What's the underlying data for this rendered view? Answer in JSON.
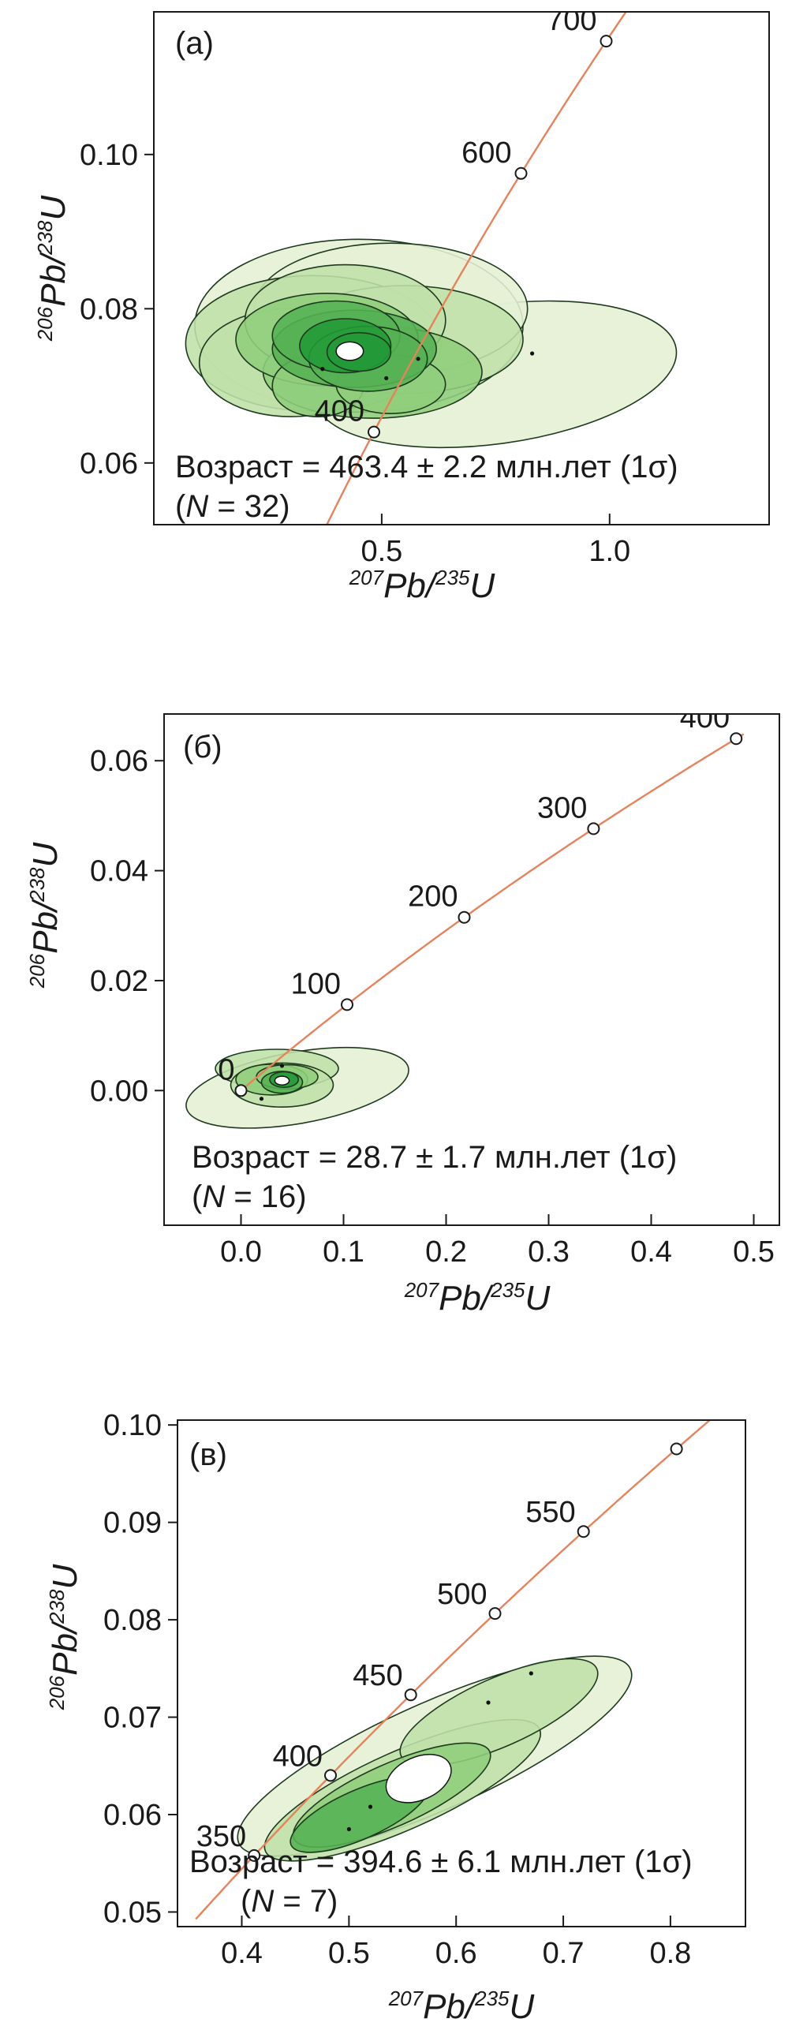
{
  "chart_data": [
    {
      "type": "scatter",
      "panel_label": "(а)",
      "xlabel_parts": [
        "207",
        "Pb/",
        "235",
        "U"
      ],
      "ylabel_parts": [
        "206",
        "Pb/",
        "238",
        "U"
      ],
      "xlim": [
        0.0,
        1.35
      ],
      "ylim": [
        0.052,
        0.1185
      ],
      "x_ticks": [
        {
          "v": 0.5,
          "label": "0.5"
        },
        {
          "v": 1.0,
          "label": "1.0"
        }
      ],
      "y_ticks": [
        {
          "v": 0.06,
          "label": "0.06"
        },
        {
          "v": 0.08,
          "label": "0.08"
        },
        {
          "v": 0.1,
          "label": "0.10"
        }
      ],
      "concordia_ages": [
        {
          "age": 400,
          "label": "400"
        },
        {
          "age": 600,
          "label": "600"
        },
        {
          "age": 700,
          "label": "700"
        }
      ],
      "concordia_range": [
        250,
        760
      ],
      "age_text": "Возраст = 463.4 ± 2.2 млн.лет (1σ)",
      "n_text": [
        "(",
        "N",
        " = 32)"
      ],
      "mean": {
        "x": 0.43,
        "y": 0.0745,
        "rx": 0.03,
        "ry": 0.0012
      },
      "ellipses": [
        {
          "x": 0.75,
          "y": 0.0715,
          "rx": 0.4,
          "ry": 0.009,
          "rot": -8,
          "shade": 0
        },
        {
          "x": 0.45,
          "y": 0.0778,
          "rx": 0.36,
          "ry": 0.0112,
          "rot": 0,
          "shade": 0
        },
        {
          "x": 0.52,
          "y": 0.08,
          "rx": 0.3,
          "ry": 0.0085,
          "rot": 0,
          "shade": 0
        },
        {
          "x": 0.35,
          "y": 0.0755,
          "rx": 0.28,
          "ry": 0.0088,
          "rot": 0,
          "shade": 1
        },
        {
          "x": 0.55,
          "y": 0.076,
          "rx": 0.26,
          "ry": 0.007,
          "rot": 0,
          "shade": 1
        },
        {
          "x": 0.3,
          "y": 0.073,
          "rx": 0.2,
          "ry": 0.007,
          "rot": 0,
          "shade": 1
        },
        {
          "x": 0.42,
          "y": 0.0785,
          "rx": 0.22,
          "ry": 0.0072,
          "rot": 0,
          "shade": 1
        },
        {
          "x": 0.48,
          "y": 0.0718,
          "rx": 0.24,
          "ry": 0.006,
          "rot": 0,
          "shade": 2
        },
        {
          "x": 0.38,
          "y": 0.076,
          "rx": 0.2,
          "ry": 0.006,
          "rot": 0,
          "shade": 2
        },
        {
          "x": 0.36,
          "y": 0.07,
          "rx": 0.1,
          "ry": 0.004,
          "rot": 0,
          "shade": 2
        },
        {
          "x": 0.52,
          "y": 0.0702,
          "rx": 0.12,
          "ry": 0.0038,
          "rot": 0,
          "shade": 2
        },
        {
          "x": 0.44,
          "y": 0.0748,
          "rx": 0.18,
          "ry": 0.005,
          "rot": 0,
          "shade": 3
        },
        {
          "x": 0.4,
          "y": 0.0765,
          "rx": 0.14,
          "ry": 0.0045,
          "rot": 0,
          "shade": 3
        },
        {
          "x": 0.47,
          "y": 0.0735,
          "rx": 0.13,
          "ry": 0.0042,
          "rot": 0,
          "shade": 3
        },
        {
          "x": 0.42,
          "y": 0.0752,
          "rx": 0.1,
          "ry": 0.0035,
          "rot": 0,
          "shade": 4
        },
        {
          "x": 0.45,
          "y": 0.0744,
          "rx": 0.07,
          "ry": 0.0025,
          "rot": 0,
          "shade": 4
        }
      ],
      "dots": [
        [
          0.42,
          0.0745
        ],
        [
          0.58,
          0.0735
        ],
        [
          0.83,
          0.0742
        ],
        [
          0.51,
          0.071
        ],
        [
          0.37,
          0.0722
        ]
      ]
    },
    {
      "type": "scatter",
      "panel_label": "(б)",
      "xlabel_parts": [
        "207",
        "Pb/",
        "235",
        "U"
      ],
      "ylabel_parts": [
        "206",
        "Pb/",
        "238",
        "U"
      ],
      "xlim": [
        -0.075,
        0.525
      ],
      "ylim": [
        -0.0245,
        0.0685
      ],
      "x_ticks": [
        {
          "v": 0.0,
          "label": "0.0"
        },
        {
          "v": 0.1,
          "label": "0.1"
        },
        {
          "v": 0.2,
          "label": "0.2"
        },
        {
          "v": 0.3,
          "label": "0.3"
        },
        {
          "v": 0.4,
          "label": "0.4"
        },
        {
          "v": 0.5,
          "label": "0.5"
        }
      ],
      "y_ticks": [
        {
          "v": 0.0,
          "label": "0.00"
        },
        {
          "v": 0.02,
          "label": "0.02"
        },
        {
          "v": 0.04,
          "label": "0.04"
        },
        {
          "v": 0.06,
          "label": "0.06"
        }
      ],
      "concordia_ages": [
        {
          "age": 0,
          "label": "0"
        },
        {
          "age": 100,
          "label": "100"
        },
        {
          "age": 200,
          "label": "200"
        },
        {
          "age": 300,
          "label": "300"
        },
        {
          "age": 400,
          "label": "400"
        }
      ],
      "concordia_range": [
        0,
        405
      ],
      "age_text": "Возраст = 28.7 ± 1.7 млн.лет (1σ)",
      "n_text": [
        "(",
        "N",
        " = 16)"
      ],
      "mean": {
        "x": 0.04,
        "y": 0.0018,
        "rx": 0.007,
        "ry": 0.0008
      },
      "ellipses": [
        {
          "x": 0.055,
          "y": 0.0005,
          "rx": 0.11,
          "ry": 0.0065,
          "rot": -10,
          "shade": 0
        },
        {
          "x": 0.035,
          "y": 0.004,
          "rx": 0.06,
          "ry": 0.0035,
          "rot": 0,
          "shade": 1
        },
        {
          "x": 0.04,
          "y": 0.001,
          "rx": 0.05,
          "ry": 0.004,
          "rot": 0,
          "shade": 1
        },
        {
          "x": 0.03,
          "y": 0.002,
          "rx": 0.035,
          "ry": 0.0028,
          "rot": 0,
          "shade": 2
        },
        {
          "x": 0.045,
          "y": 0.0025,
          "rx": 0.03,
          "ry": 0.0022,
          "rot": 0,
          "shade": 2
        },
        {
          "x": 0.04,
          "y": 0.0015,
          "rx": 0.02,
          "ry": 0.002,
          "rot": 0,
          "shade": 3
        },
        {
          "x": 0.042,
          "y": 0.002,
          "rx": 0.014,
          "ry": 0.0014,
          "rot": 0,
          "shade": 4
        }
      ],
      "dots": [
        [
          0.04,
          0.0045
        ],
        [
          0.02,
          -0.0015
        ]
      ]
    },
    {
      "type": "scatter",
      "panel_label": "(в)",
      "xlabel_parts": [
        "207",
        "Pb/",
        "235",
        "U"
      ],
      "ylabel_parts": [
        "206",
        "Pb/",
        "238",
        "U"
      ],
      "xlim": [
        0.34,
        0.87
      ],
      "ylim": [
        0.0485,
        0.1005
      ],
      "x_ticks": [
        {
          "v": 0.4,
          "label": "0.4"
        },
        {
          "v": 0.5,
          "label": "0.5"
        },
        {
          "v": 0.6,
          "label": "0.6"
        },
        {
          "v": 0.7,
          "label": "0.7"
        },
        {
          "v": 0.8,
          "label": "0.8"
        }
      ],
      "y_ticks": [
        {
          "v": 0.05,
          "label": "0.05"
        },
        {
          "v": 0.06,
          "label": "0.06"
        },
        {
          "v": 0.07,
          "label": "0.07"
        },
        {
          "v": 0.08,
          "label": "0.08"
        },
        {
          "v": 0.09,
          "label": "0.09"
        },
        {
          "v": 0.1,
          "label": "0.10"
        }
      ],
      "concordia_ages": [
        {
          "age": 350,
          "label": "350"
        },
        {
          "age": 400,
          "label": "400"
        },
        {
          "age": 450,
          "label": "450"
        },
        {
          "age": 500,
          "label": "500"
        },
        {
          "age": 550,
          "label": "550"
        },
        {
          "age": 600,
          "label": ""
        }
      ],
      "concordia_range": [
        310,
        620
      ],
      "age_text": "Возраст = 394.6 ± 6.1 млн.лет (1σ)",
      "n_text": [
        "(",
        "N",
        " = 7)"
      ],
      "mean": {
        "x": 0.565,
        "y": 0.0637,
        "rx": 0.032,
        "ry": 0.0022,
        "rot": -24
      },
      "ellipses": [
        {
          "x": 0.58,
          "y": 0.066,
          "rx": 0.2,
          "ry": 0.0055,
          "rot": -24,
          "shade": 0
        },
        {
          "x": 0.55,
          "y": 0.0625,
          "rx": 0.14,
          "ry": 0.004,
          "rot": -24,
          "shade": 1
        },
        {
          "x": 0.64,
          "y": 0.0705,
          "rx": 0.1,
          "ry": 0.0035,
          "rot": -24,
          "shade": 1
        },
        {
          "x": 0.54,
          "y": 0.062,
          "rx": 0.1,
          "ry": 0.0032,
          "rot": -24,
          "shade": 2
        },
        {
          "x": 0.51,
          "y": 0.06,
          "rx": 0.07,
          "ry": 0.0025,
          "rot": -24,
          "shade": 3
        }
      ],
      "dots": [
        [
          0.67,
          0.0745
        ],
        [
          0.63,
          0.0715
        ],
        [
          0.52,
          0.0608
        ],
        [
          0.5,
          0.0585
        ]
      ]
    }
  ]
}
